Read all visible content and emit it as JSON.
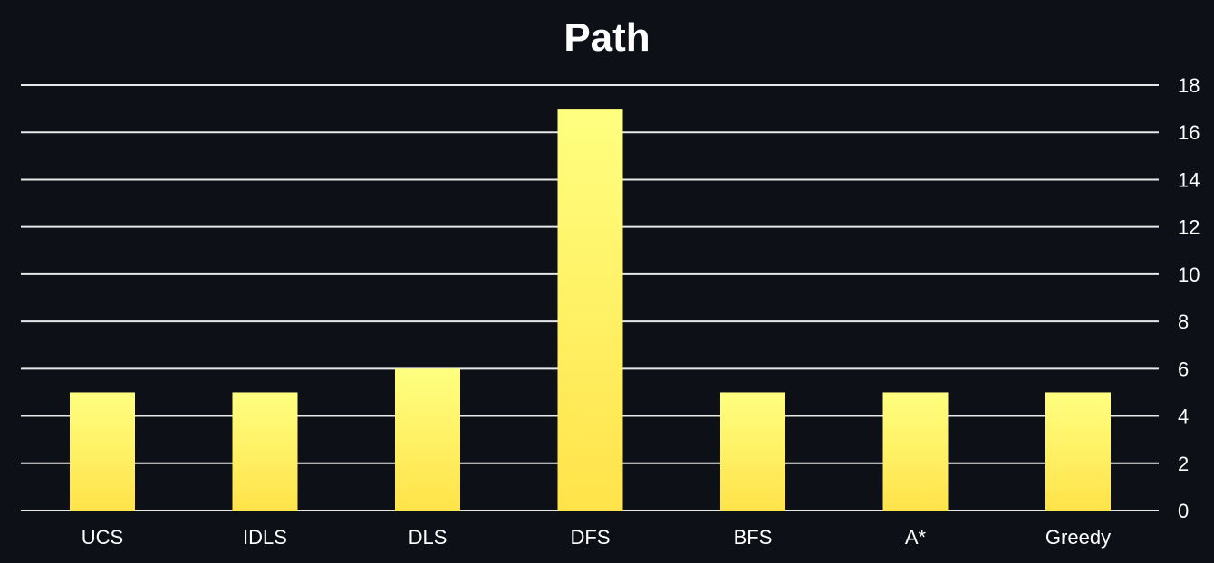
{
  "chart_data": {
    "type": "bar",
    "title": "Path",
    "xlabel": "",
    "ylabel": "",
    "categories": [
      "UCS",
      "IDLS",
      "DLS",
      "DFS",
      "BFS",
      "A*",
      "Greedy"
    ],
    "values": [
      5,
      5,
      6,
      17,
      5,
      5,
      5
    ],
    "ylim": [
      0,
      18
    ],
    "yticks": [
      0,
      2,
      4,
      6,
      8,
      10,
      12,
      14,
      16,
      18
    ],
    "y_axis_side": "right",
    "grid": true,
    "legend": "none",
    "colors": {
      "background": "#0d1017",
      "grid": "#e8e8e8",
      "bar_top": "#ffff80",
      "bar_bottom": "#ffe34a",
      "text": "#ffffff"
    }
  }
}
